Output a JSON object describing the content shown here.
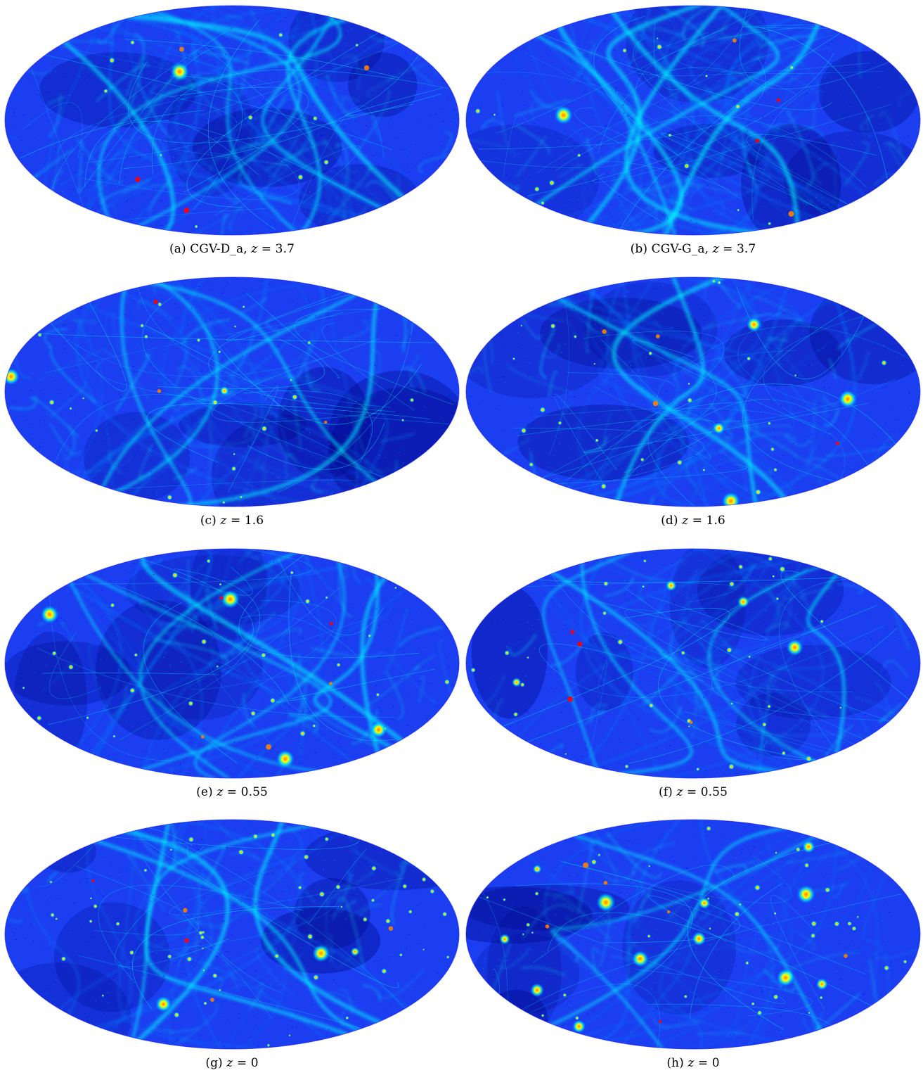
{
  "figure": {
    "colormap": [
      "#00007f",
      "#0000ff",
      "#0080ff",
      "#00ffff",
      "#80ff80",
      "#ffff00",
      "#ff8000",
      "#ff0000"
    ],
    "background_color": "#1a3ef0",
    "panels": [
      {
        "id": "a",
        "caption_prefix": "(a) CGV-D_a, ",
        "caption_var": "z",
        "caption_value": " = 3.7",
        "seed": 11,
        "richness": 1.0,
        "peaks": 0.15
      },
      {
        "id": "b",
        "caption_prefix": "(b) CGV-G_a, ",
        "caption_var": "z",
        "caption_value": " = 3.7",
        "seed": 23,
        "richness": 1.0,
        "peaks": 0.15
      },
      {
        "id": "c",
        "caption_prefix": "(c) ",
        "caption_var": "z",
        "caption_value": " = 1.6",
        "seed": 37,
        "richness": 0.75,
        "peaks": 0.35
      },
      {
        "id": "d",
        "caption_prefix": "(d) ",
        "caption_var": "z",
        "caption_value": " = 1.6",
        "seed": 41,
        "richness": 0.75,
        "peaks": 0.35
      },
      {
        "id": "e",
        "caption_prefix": "(e) ",
        "caption_var": "z",
        "caption_value": " = 0.55",
        "seed": 53,
        "richness": 0.55,
        "peaks": 0.55
      },
      {
        "id": "f",
        "caption_prefix": "(f) ",
        "caption_var": "z",
        "caption_value": " = 0.55",
        "seed": 67,
        "richness": 0.55,
        "peaks": 0.55
      },
      {
        "id": "g",
        "caption_prefix": "(g) ",
        "caption_var": "z",
        "caption_value": " = 0",
        "seed": 71,
        "richness": 0.4,
        "peaks": 0.8
      },
      {
        "id": "h",
        "caption_prefix": "(h) ",
        "caption_var": "z",
        "caption_value": " = 0",
        "seed": 89,
        "richness": 0.4,
        "peaks": 0.8
      }
    ]
  }
}
